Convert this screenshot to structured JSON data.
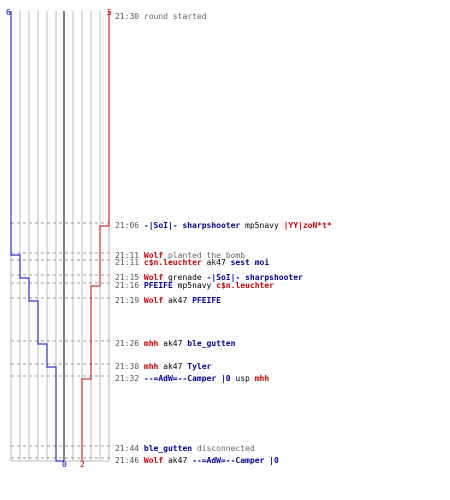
{
  "colors": {
    "team_blue": "#0000cc",
    "team_red": "#cc0000",
    "grid": "#bbbbbb",
    "axis": "#555555"
  },
  "scores": {
    "blue_final": "6",
    "red_final": "5",
    "blue_start": "0",
    "red_start": "2"
  },
  "events": [
    {
      "time": "21:30",
      "parts": [
        {
          "text": "round started",
          "style": "sys"
        }
      ]
    },
    {
      "time": "21:06",
      "parts": [
        {
          "text": "-|SoI|- sharpshooter",
          "style": "blue"
        },
        {
          "text": " mp5navy ",
          "style": "act"
        },
        {
          "text": "|YY|zoN*t*",
          "style": "red"
        }
      ]
    },
    {
      "time": "21:11",
      "parts": [
        {
          "text": "Wolf",
          "style": "red"
        },
        {
          "text": " planted the bomb",
          "style": "sys"
        }
      ]
    },
    {
      "time": "21:11",
      "parts": [
        {
          "text": "c$n.leuchter",
          "style": "red"
        },
        {
          "text": " ak47 ",
          "style": "act"
        },
        {
          "text": "sest moi",
          "style": "blue"
        }
      ]
    },
    {
      "time": "21:15",
      "parts": [
        {
          "text": "Wolf",
          "style": "red"
        },
        {
          "text": " grenade ",
          "style": "act"
        },
        {
          "text": "-|SoI|- sharpshooter",
          "style": "blue"
        }
      ]
    },
    {
      "time": "21:16",
      "parts": [
        {
          "text": "PFEIFE",
          "style": "blue"
        },
        {
          "text": " mp5navy ",
          "style": "act"
        },
        {
          "text": "c$n.leuchter",
          "style": "red"
        }
      ]
    },
    {
      "time": "21:19",
      "parts": [
        {
          "text": "Wolf",
          "style": "red"
        },
        {
          "text": " ak47 ",
          "style": "act"
        },
        {
          "text": "PFEIFE",
          "style": "blue"
        }
      ]
    },
    {
      "time": "21:26",
      "parts": [
        {
          "text": "mhh",
          "style": "red"
        },
        {
          "text": " ak47 ",
          "style": "act"
        },
        {
          "text": "ble_gutten",
          "style": "blue"
        }
      ]
    },
    {
      "time": "21:30",
      "parts": [
        {
          "text": "mhh",
          "style": "red"
        },
        {
          "text": " ak47 ",
          "style": "act"
        },
        {
          "text": "Tyler",
          "style": "blue"
        }
      ]
    },
    {
      "time": "21:32",
      "parts": [
        {
          "text": "--=AdW=--Camper |0",
          "style": "blue"
        },
        {
          "text": " usp ",
          "style": "act"
        },
        {
          "text": "mhh",
          "style": "red"
        }
      ]
    },
    {
      "time": "21:44",
      "parts": [
        {
          "text": "ble_gutten",
          "style": "blue"
        },
        {
          "text": " disconnected",
          "style": "sys"
        }
      ]
    },
    {
      "time": "21:46",
      "parts": [
        {
          "text": "Wolf",
          "style": "red"
        },
        {
          "text": " ak47 ",
          "style": "act"
        },
        {
          "text": "--=AdW=--Camper |0",
          "style": "blue"
        }
      ]
    }
  ]
}
